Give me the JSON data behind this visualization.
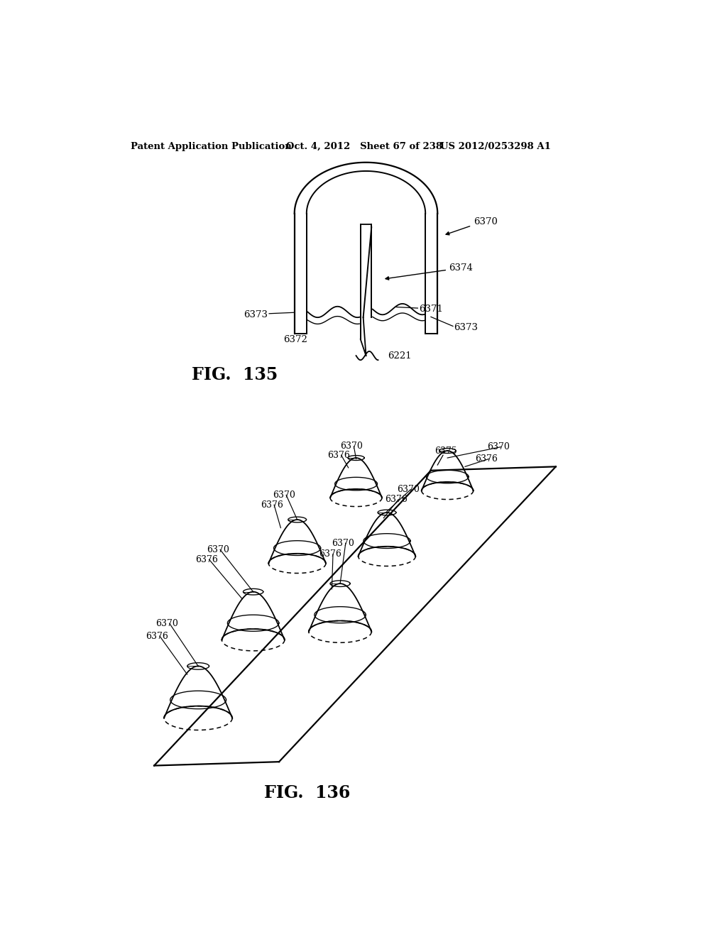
{
  "background_color": "#ffffff",
  "header_left": "Patent Application Publication",
  "header_mid": "Oct. 4, 2012   Sheet 67 of 238",
  "header_right": "US 2012/0253298 A1",
  "fig135_label": "FIG.  135",
  "fig136_label": "FIG.  136",
  "line_color": "#000000"
}
